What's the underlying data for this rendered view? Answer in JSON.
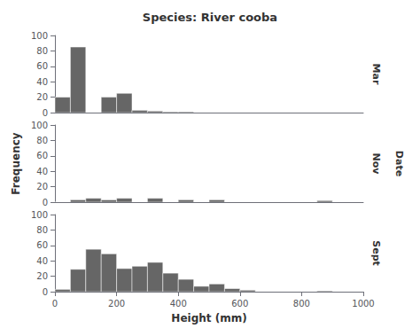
{
  "chart_data": [
    {
      "type": "histogram",
      "title": "Species: River cooba",
      "annotations": [
        "Mar"
      ],
      "bins": [
        0,
        50,
        100,
        150,
        200,
        250,
        300,
        350,
        400,
        450,
        500,
        550,
        600,
        650,
        700,
        750,
        800,
        850,
        900,
        950,
        1000
      ],
      "values": [
        20,
        85,
        0,
        20,
        25,
        3,
        2,
        1,
        1,
        0,
        0,
        0,
        0,
        0,
        0,
        0,
        0,
        0,
        0,
        0
      ],
      "color": "#666666",
      "xlim": [
        0,
        1000
      ],
      "ylim": [
        0,
        100
      ],
      "yticks": [
        0,
        20,
        40,
        60,
        80,
        100
      ],
      "tick_labels": "y",
      "grid": false
    },
    {
      "type": "histogram",
      "ylabel": "Frequency",
      "annotations": [
        "Nov",
        "Date"
      ],
      "bins": [
        0,
        50,
        100,
        150,
        200,
        250,
        300,
        350,
        400,
        450,
        500,
        550,
        600,
        650,
        700,
        750,
        800,
        850,
        900,
        950,
        1000
      ],
      "values": [
        0,
        3,
        5,
        3,
        5,
        0,
        5,
        0,
        3,
        0,
        3,
        0,
        0,
        0,
        0,
        0,
        0,
        2,
        0,
        0
      ],
      "color": "#666666",
      "xlim": [
        0,
        1000
      ],
      "ylim": [
        0,
        100
      ],
      "yticks": [
        0,
        20,
        40,
        60,
        80,
        100
      ],
      "tick_labels": "y",
      "grid": false
    },
    {
      "type": "histogram",
      "xlabel": "Height (mm)",
      "annotations": [
        "Sept"
      ],
      "bins": [
        0,
        50,
        100,
        150,
        200,
        250,
        300,
        350,
        400,
        450,
        500,
        550,
        600,
        650,
        700,
        750,
        800,
        850,
        900,
        950,
        1000
      ],
      "values": [
        3,
        29,
        55,
        49,
        30,
        33,
        38,
        24,
        16,
        7,
        10,
        4,
        2,
        0,
        0,
        0,
        0,
        1,
        0,
        0
      ],
      "color": "#666666",
      "xlim": [
        0,
        1000
      ],
      "ylim": [
        0,
        100
      ],
      "yticks": [
        0,
        20,
        40,
        60,
        80,
        100
      ],
      "xticks": [
        0,
        200,
        400,
        600,
        800,
        1000
      ],
      "grid": false
    }
  ]
}
